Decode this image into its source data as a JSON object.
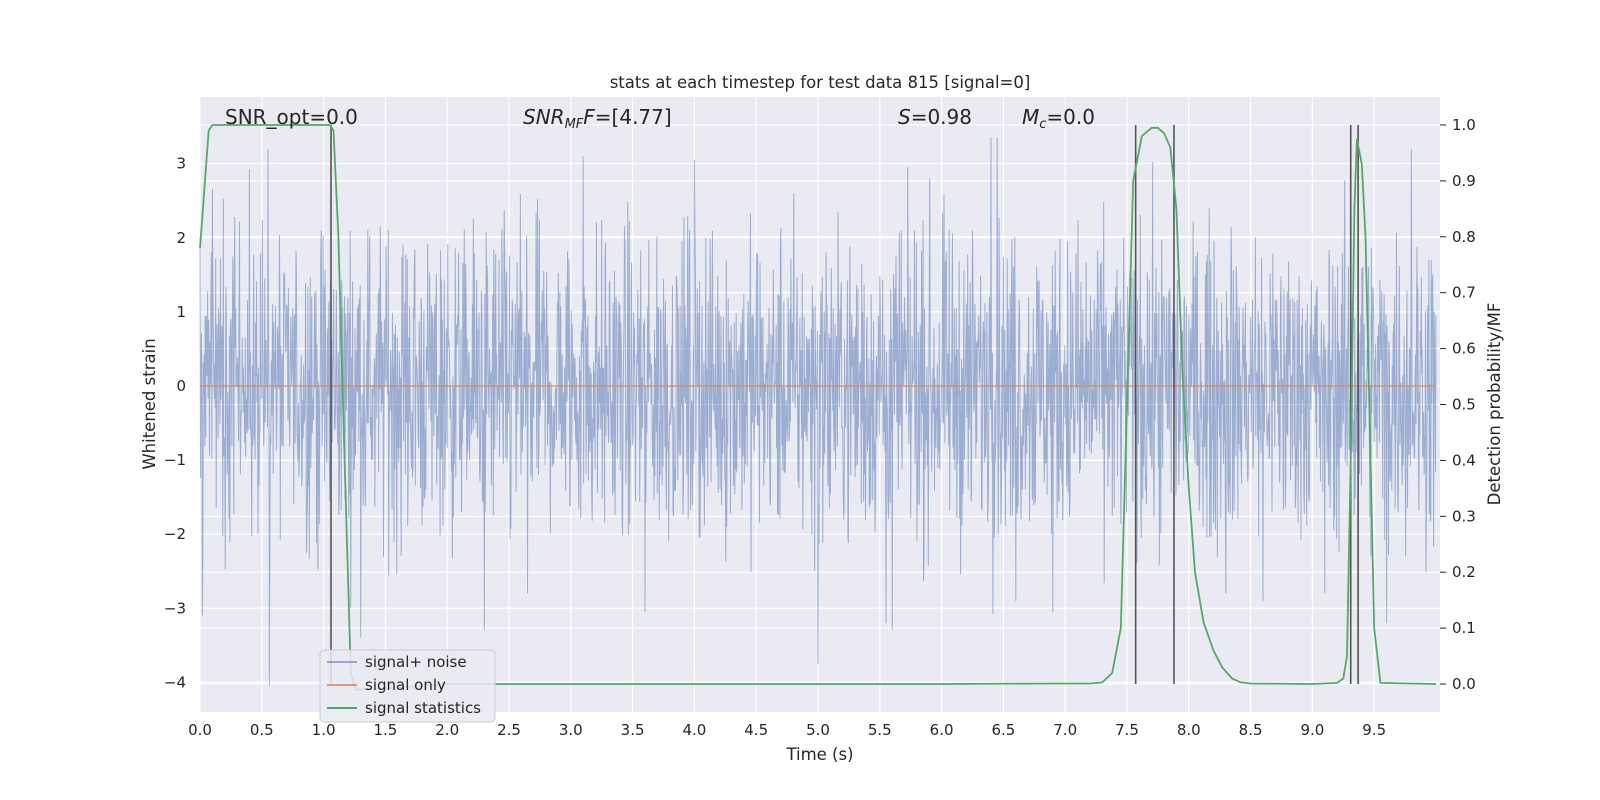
{
  "chart_data": {
    "type": "line",
    "title": "stats at each timestep for test data 815 [signal=0]",
    "xlabel": "Time (s)",
    "ylabel": "Whitened strain",
    "y2label": "Detection probability/MF",
    "xlim": [
      0.0,
      10.0
    ],
    "ylim": [
      -4.4,
      3.9
    ],
    "y2lim": [
      -0.05,
      1.05
    ],
    "x_ticks": [
      "0.0",
      "0.5",
      "1.0",
      "1.5",
      "2.0",
      "2.5",
      "3.0",
      "3.5",
      "4.0",
      "4.5",
      "5.0",
      "5.5",
      "6.0",
      "6.5",
      "7.0",
      "7.5",
      "8.0",
      "8.5",
      "9.0",
      "9.5"
    ],
    "y_ticks": [
      "3",
      "2",
      "1",
      "0",
      "−1",
      "−2",
      "−3",
      "−4"
    ],
    "y2_ticks": [
      "1.0",
      "0.9",
      "0.8",
      "0.7",
      "0.6",
      "0.5",
      "0.4",
      "0.3",
      "0.2",
      "0.1",
      "0.0"
    ],
    "grid": true,
    "legend_position": "lower-left",
    "annotations": {
      "snr_opt": "SNR_opt=0.0",
      "snr_mf_name": "SNR",
      "snr_mf_sub": "MF",
      "snr_mf_value": "=[4.77]",
      "s_name": "S",
      "s_value": "=0.98",
      "mc_name": "M",
      "mc_sub": "c",
      "mc_value": "=0.0"
    },
    "vertical_lines_x": [
      1.06,
      7.57,
      7.88,
      9.31,
      9.37
    ],
    "series": [
      {
        "name": "signal+ noise",
        "color": "#4c72b0",
        "style": "noise",
        "noise_amplitude_typical": 1.3,
        "noise_extremes": [
          [
            0.02,
            -3.1
          ],
          [
            0.55,
            3.2
          ],
          [
            0.56,
            -4.05
          ],
          [
            1.3,
            -3.4
          ],
          [
            2.3,
            -3.3
          ],
          [
            2.65,
            -2.8
          ],
          [
            3.1,
            3.1
          ],
          [
            3.6,
            -3.05
          ],
          [
            4.0,
            3.05
          ],
          [
            5.0,
            -3.75
          ],
          [
            5.55,
            -3.2
          ],
          [
            5.6,
            -3.3
          ],
          [
            6.4,
            3.35
          ],
          [
            6.45,
            3.35
          ],
          [
            6.6,
            -2.9
          ],
          [
            6.9,
            -3.05
          ],
          [
            8.3,
            -2.8
          ],
          [
            8.6,
            -2.9
          ],
          [
            9.1,
            -2.8
          ],
          [
            9.6,
            -3.2
          ],
          [
            9.8,
            3.2
          ]
        ]
      },
      {
        "name": "signal only",
        "color": "#dd8452",
        "axis": "left",
        "x": [
          0.0,
          10.0
        ],
        "values": [
          0.0,
          0.0
        ]
      },
      {
        "name": "signal statistics",
        "color": "#55a868",
        "axis": "right",
        "x": [
          0.0,
          0.07,
          0.1,
          0.2,
          0.5,
          1.0,
          1.05,
          1.08,
          1.12,
          1.17,
          1.22,
          1.26,
          1.35,
          2.0,
          4.0,
          6.0,
          6.9,
          7.2,
          7.3,
          7.38,
          7.45,
          7.5,
          7.55,
          7.62,
          7.7,
          7.75,
          7.8,
          7.85,
          7.9,
          7.95,
          8.0,
          8.05,
          8.12,
          8.2,
          8.27,
          8.35,
          8.42,
          8.5,
          9.0,
          9.2,
          9.25,
          9.28,
          9.31,
          9.34,
          9.36,
          9.4,
          9.43,
          9.46,
          9.5,
          9.55,
          10.0
        ],
        "values": [
          0.78,
          0.99,
          1.0,
          1.0,
          1.0,
          1.0,
          1.0,
          0.99,
          0.8,
          0.4,
          0.02,
          -0.01,
          -0.01,
          0.0,
          0.0,
          0.0,
          0.001,
          0.001,
          0.003,
          0.02,
          0.1,
          0.5,
          0.9,
          0.98,
          0.995,
          0.995,
          0.985,
          0.96,
          0.85,
          0.55,
          0.35,
          0.2,
          0.11,
          0.06,
          0.03,
          0.01,
          0.003,
          0.001,
          0.0,
          0.002,
          0.01,
          0.05,
          0.4,
          0.85,
          0.975,
          0.93,
          0.8,
          0.5,
          0.1,
          0.002,
          0.0
        ]
      }
    ]
  }
}
